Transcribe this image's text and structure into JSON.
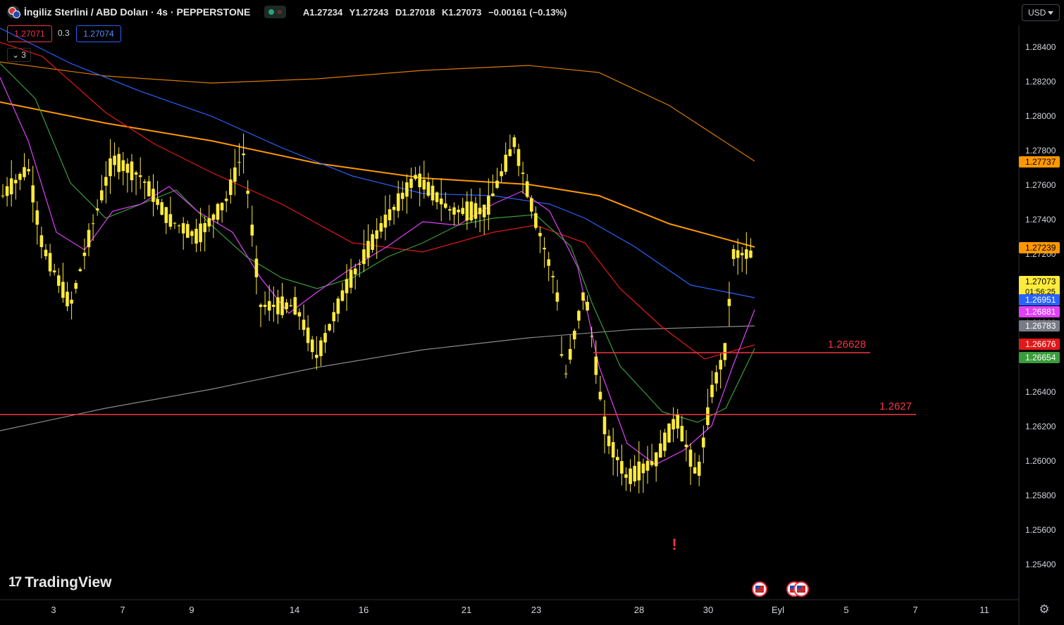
{
  "header": {
    "title": "İngiliz Sterlini / ABD Doları · 4s · PEPPERSTONE",
    "ohlc": {
      "open": "A1.27234",
      "high": "Y1.27243",
      "low": "D1.27018",
      "close": "K1.27073",
      "change": "−0.00161 (−0.13%)"
    },
    "sell_price": "1.27071",
    "spread": "0.3",
    "buy_price": "1.27074",
    "indicators_count": "3",
    "currency": "USD"
  },
  "brand": {
    "name": "TradingView"
  },
  "colors": {
    "background": "#000000",
    "candle": "#ffeb3b",
    "hline": "#f23645",
    "ma_orange": "#ff9800",
    "ma_dark_orange": "#d97a00",
    "ma_blue": "#2962ff",
    "ma_magenta": "#e040fb",
    "ma_red": "#e31818",
    "ma_green": "#3a9c3a",
    "ma_gray": "#8a8a8a"
  },
  "chart_data": {
    "type": "candlestick",
    "symbol": "GBPUSD",
    "timeframe": "4s",
    "ylim": [
      1.2535,
      1.2865
    ],
    "y_ticks": [
      "1.28400",
      "1.28200",
      "1.28000",
      "1.27800",
      "1.27600",
      "1.27400",
      "1.27200",
      "1.27000",
      "1.26800",
      "1.26600",
      "1.26400",
      "1.26200",
      "1.26000",
      "1.25800",
      "1.25600",
      "1.25400"
    ],
    "x_ticks": [
      "3",
      "7",
      "9",
      "14",
      "16",
      "21",
      "23",
      "28",
      "30",
      "Eyl",
      "5",
      "7",
      "11"
    ],
    "horizontal_lines": [
      {
        "price": 1.26628,
        "label": "1.26628"
      },
      {
        "price": 1.2627,
        "label": "1.2627"
      }
    ],
    "price_labels": [
      {
        "value": "1.27737",
        "color": "#ff9800",
        "text_color": "#000000"
      },
      {
        "value": "1.27239",
        "color": "#ff9800",
        "text_color": "#000000"
      },
      {
        "value": "1.27073",
        "sub": "01:56:25",
        "color": "#ffeb3b",
        "text_color": "#000000"
      },
      {
        "value": "1.26951",
        "color": "#2962ff",
        "text_color": "#ffffff"
      },
      {
        "value": "1.26881",
        "color": "#e040fb",
        "text_color": "#ffffff"
      },
      {
        "value": "1.26783",
        "color": "#787b86",
        "text_color": "#ffffff"
      },
      {
        "value": "1.26676",
        "color": "#e31818",
        "text_color": "#ffffff"
      },
      {
        "value": "1.26654",
        "color": "#3a9c3a",
        "text_color": "#ffffff"
      }
    ]
  }
}
